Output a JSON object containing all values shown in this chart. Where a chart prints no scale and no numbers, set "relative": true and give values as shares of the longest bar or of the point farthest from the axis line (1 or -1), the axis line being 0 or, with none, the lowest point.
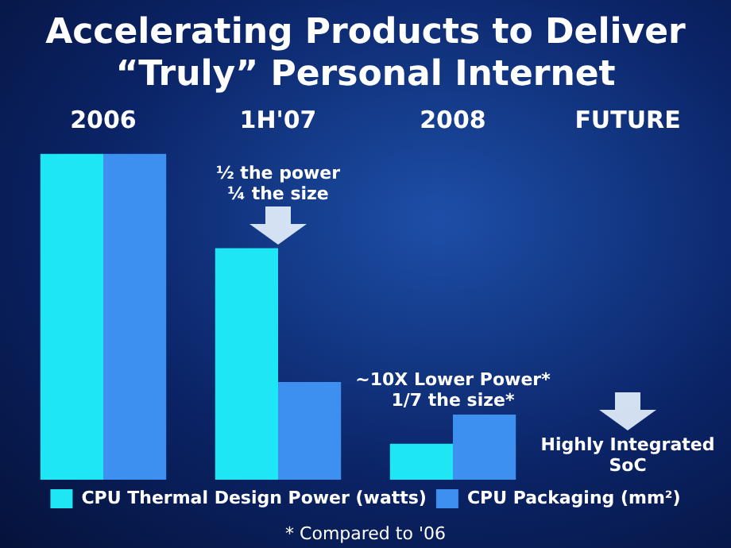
{
  "chart_data": {
    "type": "bar",
    "title": "Accelerating Products to Deliver “Truly” Personal Internet",
    "categories": [
      "2006",
      "1H'07",
      "2008",
      "FUTURE"
    ],
    "relative": true,
    "series": [
      {
        "name": "CPU Thermal Design Power (watts)",
        "color": "#1fe6f5",
        "values": [
          1,
          0.71,
          0.11,
          null
        ]
      },
      {
        "name": "CPU Packaging (mm²)",
        "color": "#3d8ff0",
        "values": [
          1,
          0.3,
          0.2,
          null
        ]
      }
    ],
    "annotations": [
      "½ the power",
      "¼ the size",
      "~10X Lower Power*",
      "1/7 the size*",
      "Highly Integrated",
      "SoC",
      "* Compared to '06"
    ],
    "grid": false,
    "legend": "bottom"
  }
}
